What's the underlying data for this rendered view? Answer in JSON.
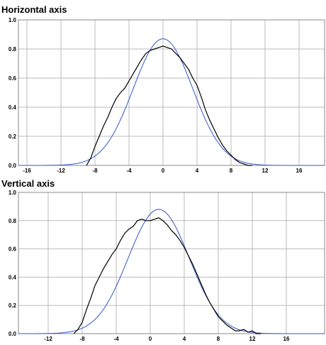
{
  "chart_data": [
    {
      "type": "line",
      "title": "Horizontal axis",
      "xlim": [
        -17,
        19
      ],
      "ylim": [
        0,
        1
      ],
      "xticks": [
        "-16",
        "-12",
        "-8",
        "-4",
        "0",
        "4",
        "8",
        "12",
        "16"
      ],
      "yticks": [
        "0.0",
        "0.2",
        "0.4",
        "0.6",
        "0.8",
        "1.0"
      ],
      "grid": true,
      "colors": {
        "measured": "#000000",
        "fit": "#3355cc",
        "grid": "#bbbbbb"
      },
      "series": [
        {
          "role": "measured",
          "x": [
            -9,
            -8.5,
            -8,
            -7.5,
            -7,
            -6.5,
            -6,
            -5.5,
            -5,
            -4.5,
            -4,
            -3.5,
            -3,
            -2.5,
            -2,
            -1.5,
            -1,
            -0.5,
            0,
            0.5,
            1,
            1.5,
            2,
            2.5,
            3,
            3.5,
            4,
            4.5,
            5,
            5.5,
            6,
            6.5,
            7,
            7.5,
            8,
            8.5,
            9,
            9.5,
            10,
            10.5
          ],
          "y": [
            0.0,
            0.05,
            0.13,
            0.2,
            0.27,
            0.33,
            0.4,
            0.46,
            0.5,
            0.53,
            0.58,
            0.63,
            0.68,
            0.73,
            0.77,
            0.79,
            0.8,
            0.81,
            0.82,
            0.81,
            0.8,
            0.77,
            0.74,
            0.7,
            0.66,
            0.6,
            0.55,
            0.47,
            0.38,
            0.31,
            0.25,
            0.19,
            0.14,
            0.1,
            0.07,
            0.04,
            0.02,
            0.01,
            0.0,
            0.0
          ]
        },
        {
          "role": "fit",
          "mu": 0,
          "sigma": 3.5,
          "amplitude": 0.87,
          "xrange": [
            -17,
            19
          ]
        }
      ]
    },
    {
      "type": "line",
      "title": "Vertical axis",
      "xlim": [
        -15.5,
        20.5
      ],
      "ylim": [
        0,
        1
      ],
      "xticks": [
        "-12",
        "-8",
        "-4",
        "0",
        "4",
        "8",
        "12",
        "16"
      ],
      "yticks": [
        "0.0",
        "0.2",
        "0.4",
        "0.6",
        "0.8",
        "1.0"
      ],
      "grid": true,
      "colors": {
        "measured": "#000000",
        "fit": "#3355cc",
        "grid": "#bbbbbb"
      },
      "series": [
        {
          "role": "measured",
          "x": [
            -9,
            -8.5,
            -8,
            -7.5,
            -7,
            -6.5,
            -6,
            -5.5,
            -5,
            -4.5,
            -4,
            -3.5,
            -3,
            -2.5,
            -2,
            -1.5,
            -1,
            -0.5,
            0,
            0.5,
            1,
            1.5,
            2,
            2.5,
            3,
            3.5,
            4,
            4.5,
            5,
            5.5,
            6,
            6.5,
            7,
            7.5,
            8,
            8.5,
            9,
            9.5,
            10,
            10.5,
            11,
            11.5,
            12,
            12.5,
            13
          ],
          "y": [
            0.0,
            0.03,
            0.08,
            0.17,
            0.25,
            0.34,
            0.4,
            0.46,
            0.51,
            0.56,
            0.6,
            0.66,
            0.71,
            0.74,
            0.76,
            0.8,
            0.81,
            0.8,
            0.8,
            0.81,
            0.82,
            0.8,
            0.77,
            0.73,
            0.7,
            0.66,
            0.61,
            0.55,
            0.49,
            0.42,
            0.35,
            0.28,
            0.22,
            0.17,
            0.12,
            0.09,
            0.06,
            0.04,
            0.02,
            0.02,
            0.03,
            0.01,
            0.02,
            0.0,
            0.0
          ]
        },
        {
          "role": "fit",
          "mu": 1,
          "sigma": 3.6,
          "amplitude": 0.88,
          "xrange": [
            -15.5,
            20.5
          ]
        }
      ]
    }
  ]
}
